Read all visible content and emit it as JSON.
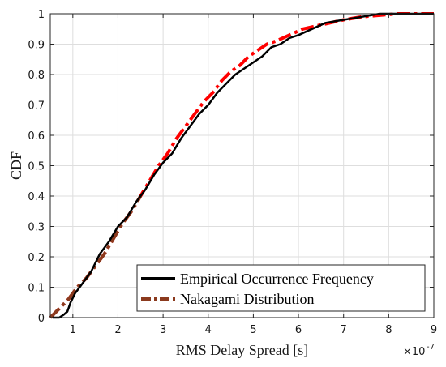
{
  "chart_data": {
    "type": "line",
    "xlabel": "RMS Delay Spread [s]",
    "ylabel": "CDF",
    "x_multiplier_label": "×10",
    "x_multiplier_exponent": "-7",
    "xlim": [
      0.5,
      9
    ],
    "ylim": [
      0,
      1
    ],
    "x_ticks": [
      "1",
      "2",
      "3",
      "4",
      "5",
      "6",
      "7",
      "8",
      "9"
    ],
    "y_ticks": [
      "0",
      "0.1",
      "0.2",
      "0.3",
      "0.4",
      "0.5",
      "0.6",
      "0.7",
      "0.8",
      "0.9",
      "1"
    ],
    "grid": true,
    "legend_position": "bottom-right",
    "series": [
      {
        "name": "Empirical Occurrence Frequency",
        "color": "#000000",
        "style": "solid",
        "x": [
          0.55,
          0.7,
          0.8,
          0.88,
          0.95,
          1.05,
          1.2,
          1.4,
          1.6,
          1.8,
          2.0,
          2.2,
          2.4,
          2.6,
          2.8,
          3.0,
          3.2,
          3.4,
          3.6,
          3.8,
          4.0,
          4.2,
          4.4,
          4.6,
          4.8,
          5.0,
          5.2,
          5.4,
          5.6,
          5.8,
          6.0,
          6.3,
          6.6,
          7.0,
          7.4,
          7.8,
          8.2,
          8.6,
          9.0
        ],
        "y": [
          0.0,
          0.0,
          0.01,
          0.02,
          0.05,
          0.08,
          0.11,
          0.15,
          0.21,
          0.25,
          0.3,
          0.33,
          0.38,
          0.42,
          0.47,
          0.51,
          0.54,
          0.59,
          0.63,
          0.67,
          0.7,
          0.74,
          0.77,
          0.8,
          0.82,
          0.84,
          0.86,
          0.89,
          0.9,
          0.92,
          0.93,
          0.95,
          0.97,
          0.98,
          0.99,
          1.0,
          1.0,
          1.0,
          1.0
        ]
      },
      {
        "name": "Nakagami Distribution",
        "color": "#8b3a1e",
        "accent_color": "#ff0000",
        "style": "dashdot",
        "x": [
          0.5,
          0.7,
          0.9,
          1.1,
          1.3,
          1.5,
          1.7,
          1.9,
          2.1,
          2.3,
          2.5,
          2.7,
          2.9,
          3.1,
          3.3,
          3.5,
          3.7,
          3.9,
          4.1,
          4.3,
          4.5,
          4.7,
          4.9,
          5.1,
          5.3,
          5.5,
          5.8,
          6.1,
          6.4,
          6.7,
          7.0,
          7.4,
          7.8,
          8.2,
          8.6,
          9.0
        ],
        "y": [
          0.0,
          0.03,
          0.06,
          0.1,
          0.13,
          0.17,
          0.21,
          0.26,
          0.31,
          0.35,
          0.4,
          0.45,
          0.5,
          0.54,
          0.59,
          0.63,
          0.67,
          0.71,
          0.74,
          0.78,
          0.81,
          0.83,
          0.86,
          0.88,
          0.9,
          0.91,
          0.93,
          0.95,
          0.96,
          0.97,
          0.98,
          0.99,
          0.995,
          1.0,
          1.0,
          1.0
        ]
      }
    ]
  }
}
